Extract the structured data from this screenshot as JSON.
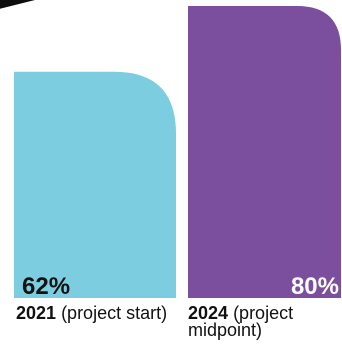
{
  "chart_data": {
    "type": "bar",
    "categories": [
      "2021",
      "2024"
    ],
    "category_notes": [
      "(project start)",
      "(project midpoint)"
    ],
    "values": [
      62,
      80
    ],
    "value_labels": [
      "62%",
      "80%"
    ],
    "ylim": [
      0,
      80
    ],
    "bar_colors": [
      "#7dcde0",
      "#7b4f9e"
    ],
    "value_label_colors": [
      "#111111",
      "#ffffff"
    ],
    "title": "",
    "xlabel": "",
    "ylabel": ""
  },
  "decoration": {
    "corner_color": "#0d0d0d"
  }
}
